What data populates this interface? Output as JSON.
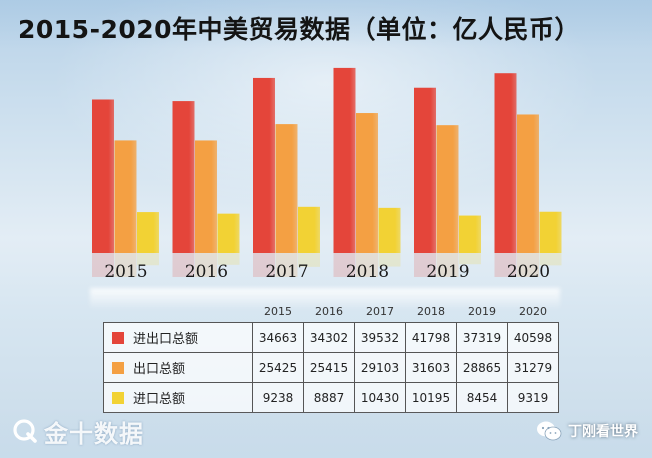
{
  "title": "2015-2020年中美贸易数据（单位：亿人民币）",
  "colors": {
    "total": "#e4453a",
    "export": "#f4a043",
    "import": "#f2d234"
  },
  "chart_data": {
    "type": "bar",
    "title": "2015-2020年中美贸易数据（单位：亿人民币）",
    "categories": [
      "2015",
      "2016",
      "2017",
      "2018",
      "2019",
      "2020"
    ],
    "series": [
      {
        "name": "进出口总额",
        "values": [
          34663,
          34302,
          39532,
          41798,
          37319,
          40598
        ]
      },
      {
        "name": "出口总额",
        "values": [
          25425,
          25415,
          29103,
          31603,
          28865,
          31279
        ]
      },
      {
        "name": "进口总额",
        "values": [
          9238,
          8887,
          10430,
          10195,
          8454,
          9319
        ]
      }
    ],
    "ylim": [
      0,
      42000
    ],
    "grid": false,
    "legend": "table below chart"
  },
  "table": {
    "headers": [
      "2015",
      "2016",
      "2017",
      "2018",
      "2019",
      "2020"
    ],
    "rows": [
      {
        "label": "进出口总额",
        "values": [
          "34663",
          "34302",
          "39532",
          "41798",
          "37319",
          "40598"
        ]
      },
      {
        "label": "出口总额",
        "values": [
          "25425",
          "25415",
          "29103",
          "31603",
          "28865",
          "31279"
        ]
      },
      {
        "label": "进口总额",
        "values": [
          "9238",
          "8887",
          "10430",
          "10195",
          "8454",
          "9319"
        ]
      }
    ]
  },
  "footer": {
    "logo_text": "金十数据",
    "logo_icon": "jin10-logo-icon",
    "credit_text": "丁刚看世界",
    "credit_icon": "wechat-icon"
  }
}
